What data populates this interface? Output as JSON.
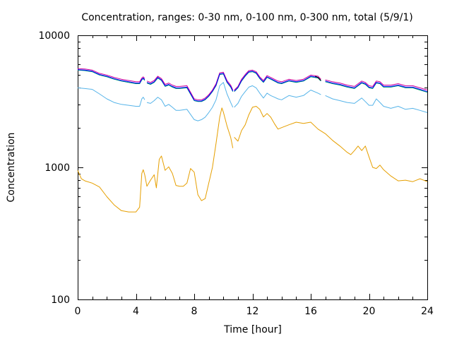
{
  "chart_data": {
    "type": "line",
    "title": "Concentration, ranges: 0-30 nm, 0-100 nm, 0-300 nm, total (5/9/1)",
    "xlabel": "Time [hour]",
    "ylabel": "Concentration",
    "x_range": [
      0,
      24
    ],
    "y_range": [
      100,
      10000
    ],
    "y_scale": "log",
    "grid": false,
    "x_ticks": [
      0,
      4,
      8,
      12,
      16,
      20,
      24
    ],
    "x_tick_labels": [
      "0",
      "4",
      "8",
      "12",
      "16",
      "20",
      "24"
    ],
    "y_ticks": [
      100,
      1000,
      10000
    ],
    "y_tick_labels": [
      "100",
      "1000",
      "10000"
    ],
    "series": [
      {
        "color": "#e69f00",
        "x": [
          0,
          0.25,
          0.5,
          1,
          1.5,
          2,
          2.5,
          3,
          3.5,
          4,
          4.25,
          4.4,
          4.5,
          4.6,
          4.75,
          5.0,
          5.25,
          5.4,
          5.6,
          5.75,
          6.0,
          6.25,
          6.5,
          6.75,
          7.0,
          7.25,
          7.5,
          7.75,
          8.0,
          8.25,
          8.5,
          8.75,
          9.0,
          9.25,
          9.5,
          9.75,
          9.9,
          10.0,
          10.25,
          10.5,
          10.65,
          10.75,
          11.0,
          11.25,
          11.5,
          11.75,
          12.0,
          12.25,
          12.5,
          12.75,
          13.0,
          13.25,
          13.5,
          13.75,
          14.0,
          14.5,
          15.0,
          15.5,
          16.0,
          16.5,
          17.0,
          17.5,
          18.0,
          18.5,
          18.75,
          19.0,
          19.25,
          19.5,
          19.75,
          20.0,
          20.25,
          20.5,
          20.75,
          21.0,
          21.5,
          22.0,
          22.5,
          23.0,
          23.5,
          24.0
        ],
        "values": [
          950,
          820,
          790,
          760,
          710,
          600,
          520,
          470,
          460,
          460,
          500,
          900,
          960,
          880,
          720,
          800,
          880,
          700,
          1150,
          1220,
          950,
          1010,
          900,
          730,
          720,
          720,
          760,
          980,
          920,
          620,
          560,
          580,
          760,
          1000,
          1520,
          2400,
          2820,
          2620,
          2060,
          1690,
          1400,
          1690,
          1580,
          1900,
          2100,
          2500,
          2850,
          2900,
          2750,
          2410,
          2560,
          2400,
          2150,
          1950,
          2000,
          2100,
          2200,
          2150,
          2200,
          1950,
          1800,
          1600,
          1450,
          1300,
          1250,
          1340,
          1450,
          1340,
          1450,
          1200,
          1000,
          980,
          1040,
          960,
          860,
          790,
          800,
          780,
          820,
          780
        ],
        "gaps_after_x": [
          10.65
        ]
      },
      {
        "color": "#56b4e9",
        "x": [
          0,
          0.5,
          1,
          1.5,
          2,
          2.5,
          3,
          3.5,
          4,
          4.25,
          4.4,
          4.5,
          4.6,
          4.75,
          5.0,
          5.25,
          5.5,
          5.75,
          6.0,
          6.25,
          6.5,
          6.75,
          7.0,
          7.5,
          8.0,
          8.25,
          8.5,
          8.75,
          9.0,
          9.25,
          9.5,
          9.75,
          10.0,
          10.25,
          10.5,
          10.65,
          10.75,
          11.0,
          11.25,
          11.5,
          11.75,
          12.0,
          12.25,
          12.5,
          12.75,
          13.0,
          13.25,
          13.5,
          13.75,
          14.0,
          14.5,
          15.0,
          15.5,
          16.0,
          16.5,
          16.7,
          17.0,
          17.5,
          18.0,
          18.5,
          19.0,
          19.5,
          19.75,
          20.0,
          20.25,
          20.5,
          20.75,
          21.0,
          21.5,
          22.0,
          22.5,
          23.0,
          23.5,
          24.0
        ],
        "values": [
          4000,
          3950,
          3900,
          3600,
          3300,
          3100,
          3000,
          2950,
          2900,
          2900,
          3300,
          3400,
          3250,
          3100,
          3050,
          3200,
          3400,
          3250,
          2900,
          3000,
          2850,
          2700,
          2700,
          2750,
          2300,
          2250,
          2300,
          2400,
          2600,
          2850,
          3250,
          4150,
          4400,
          3600,
          3100,
          2850,
          2850,
          3050,
          3450,
          3750,
          4050,
          4150,
          4000,
          3650,
          3350,
          3650,
          3500,
          3400,
          3300,
          3250,
          3500,
          3400,
          3500,
          3850,
          3650,
          3550,
          3500,
          3300,
          3200,
          3100,
          3050,
          3350,
          3150,
          2950,
          2950,
          3300,
          3100,
          2900,
          2800,
          2900,
          2750,
          2800,
          2700,
          2600
        ],
        "gaps_after_x": [
          4.6,
          10.65,
          16.7
        ]
      },
      {
        "color": "#009e73",
        "x": [
          0,
          0.5,
          1,
          1.5,
          2,
          2.5,
          3,
          3.5,
          4,
          4.25,
          4.4,
          4.5,
          4.6,
          4.75,
          5.0,
          5.25,
          5.5,
          5.75,
          6.0,
          6.25,
          6.5,
          6.75,
          7.0,
          7.5,
          8.0,
          8.25,
          8.5,
          8.75,
          9.0,
          9.25,
          9.5,
          9.75,
          10.0,
          10.25,
          10.5,
          10.65,
          10.75,
          11.0,
          11.25,
          11.5,
          11.75,
          12.0,
          12.25,
          12.5,
          12.75,
          13.0,
          13.25,
          13.5,
          13.75,
          14.0,
          14.5,
          15.0,
          15.5,
          16.0,
          16.5,
          16.7,
          17.0,
          17.5,
          18.0,
          18.5,
          19.0,
          19.5,
          19.75,
          20.0,
          20.25,
          20.5,
          20.75,
          21.0,
          21.5,
          22.0,
          22.5,
          23.0,
          23.5,
          24.0
        ],
        "values": [
          5450,
          5400,
          5300,
          5000,
          4850,
          4650,
          4500,
          4400,
          4300,
          4300,
          4600,
          4700,
          4550,
          4350,
          4250,
          4400,
          4750,
          4550,
          4100,
          4200,
          4050,
          3950,
          3950,
          4000,
          3200,
          3150,
          3150,
          3250,
          3450,
          3750,
          4150,
          5050,
          5100,
          4400,
          4050,
          3750,
          3750,
          4000,
          4500,
          4900,
          5250,
          5300,
          5150,
          4700,
          4400,
          4800,
          4650,
          4500,
          4350,
          4300,
          4500,
          4400,
          4500,
          4850,
          4750,
          4500,
          4450,
          4300,
          4200,
          4050,
          3950,
          4350,
          4250,
          4000,
          3950,
          4350,
          4300,
          4050,
          4050,
          4150,
          4000,
          4000,
          3850,
          3700
        ],
        "gaps_after_x": [
          4.6,
          10.65,
          16.7
        ]
      },
      {
        "color": "#cc0099",
        "x": [
          0,
          0.5,
          1,
          1.5,
          2,
          2.5,
          3,
          3.5,
          4,
          4.25,
          4.4,
          4.5,
          4.6,
          4.75,
          5.0,
          5.25,
          5.5,
          5.75,
          6.0,
          6.25,
          6.5,
          6.75,
          7.0,
          7.5,
          8.0,
          8.25,
          8.5,
          8.75,
          9.0,
          9.25,
          9.5,
          9.75,
          10.0,
          10.25,
          10.5,
          10.65,
          10.75,
          11.0,
          11.25,
          11.5,
          11.75,
          12.0,
          12.25,
          12.5,
          12.75,
          13.0,
          13.25,
          13.5,
          13.75,
          14.0,
          14.5,
          15.0,
          15.5,
          16.0,
          16.5,
          16.7,
          17.0,
          17.5,
          18.0,
          18.5,
          19.0,
          19.5,
          19.75,
          20.0,
          20.25,
          20.5,
          20.75,
          21.0,
          21.5,
          22.0,
          22.5,
          23.0,
          23.5,
          24.0
        ],
        "values": [
          5600,
          5550,
          5450,
          5150,
          5000,
          4800,
          4650,
          4550,
          4450,
          4450,
          4750,
          4850,
          4700,
          4500,
          4400,
          4550,
          4900,
          4700,
          4250,
          4350,
          4200,
          4100,
          4100,
          4150,
          3300,
          3250,
          3250,
          3350,
          3550,
          3850,
          4300,
          5200,
          5250,
          4550,
          4200,
          3850,
          3850,
          4100,
          4650,
          5050,
          5400,
          5450,
          5300,
          4850,
          4550,
          4950,
          4800,
          4650,
          4500,
          4450,
          4650,
          4550,
          4650,
          5000,
          4900,
          4650,
          4600,
          4450,
          4350,
          4200,
          4100,
          4500,
          4400,
          4150,
          4100,
          4500,
          4450,
          4200,
          4200,
          4300,
          4150,
          4150,
          4000,
          3850
        ],
        "gaps_after_x": [
          4.6,
          10.65,
          16.7
        ]
      },
      {
        "color": "#0000ff",
        "x": [
          0,
          0.5,
          1,
          1.5,
          2,
          2.5,
          3,
          3.5,
          4,
          4.25,
          4.4,
          4.5,
          4.6,
          4.75,
          5.0,
          5.25,
          5.5,
          5.75,
          6.0,
          6.25,
          6.5,
          6.75,
          7.0,
          7.5,
          8.0,
          8.25,
          8.5,
          8.75,
          9.0,
          9.25,
          9.5,
          9.75,
          10.0,
          10.25,
          10.5,
          10.65,
          10.75,
          11.0,
          11.25,
          11.5,
          11.75,
          12.0,
          12.25,
          12.5,
          12.75,
          13.0,
          13.25,
          13.5,
          13.75,
          14.0,
          14.5,
          15.0,
          15.5,
          16.0,
          16.5,
          16.7,
          17.0,
          17.5,
          18.0,
          18.5,
          19.0,
          19.5,
          19.75,
          20.0,
          20.25,
          20.5,
          20.75,
          21.0,
          21.5,
          22.0,
          22.5,
          23.0,
          23.5,
          24.0
        ],
        "values": [
          5500,
          5450,
          5350,
          5050,
          4900,
          4700,
          4550,
          4450,
          4350,
          4350,
          4650,
          4750,
          4600,
          4400,
          4300,
          4450,
          4800,
          4600,
          4150,
          4250,
          4100,
          4000,
          4000,
          4050,
          3230,
          3180,
          3180,
          3280,
          3480,
          3780,
          4200,
          5100,
          5150,
          4450,
          4100,
          3780,
          3780,
          4030,
          4550,
          4950,
          5300,
          5350,
          5200,
          4750,
          4450,
          4850,
          4700,
          4550,
          4400,
          4350,
          4550,
          4450,
          4550,
          4900,
          4800,
          4550,
          4500,
          4350,
          4250,
          4100,
          4000,
          4400,
          4300,
          4050,
          4000,
          4400,
          4350,
          4100,
          4100,
          4200,
          4050,
          4050,
          3900,
          3750
        ],
        "gaps_after_x": [
          4.6,
          10.65,
          16.7
        ]
      },
      {
        "color": "#000000",
        "x": [
          16.3,
          16.5,
          16.7
        ],
        "values": [
          4900,
          4800,
          4550
        ],
        "gaps_after_x": []
      }
    ]
  }
}
